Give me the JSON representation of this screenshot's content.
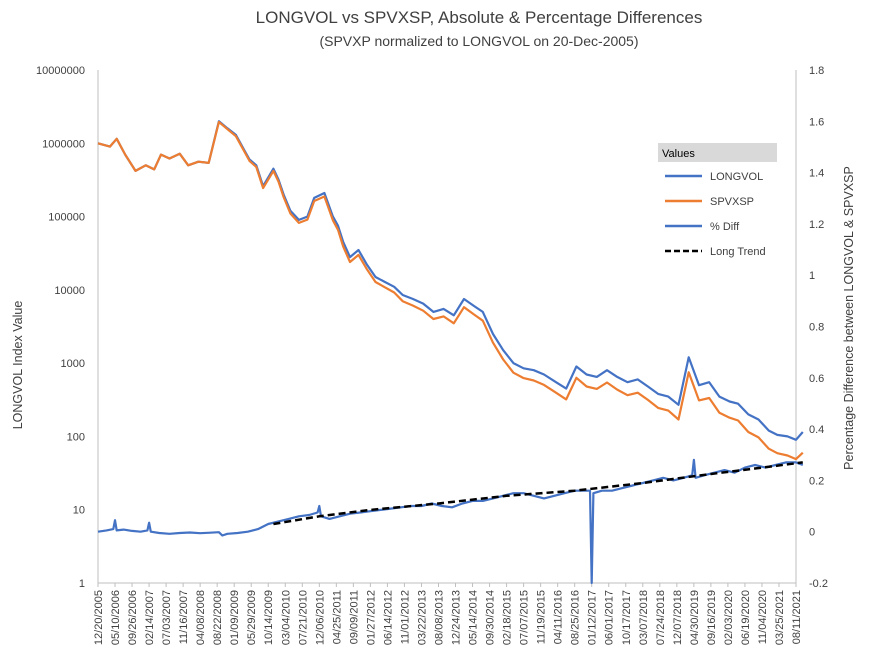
{
  "chart_data": {
    "type": "line",
    "title": "LONGVOL vs SPVXSP, Absolute & Percentage Differences",
    "subtitle": "(SPVXP normalized to LONGVOL on 20-Dec-2005)",
    "ylabel": "LONGVOL Index Value",
    "y2label": "Percentage Difference between LONGVOL & SPVXSP",
    "yscale": "log",
    "ylim": [
      1,
      10000000
    ],
    "y_ticks": [
      "1",
      "10",
      "100",
      "1000",
      "10000",
      "100000",
      "1000000",
      "10000000"
    ],
    "y2lim": [
      -0.2,
      1.8
    ],
    "y2_ticks": [
      "-0.2",
      "0",
      "0.2",
      "0.4",
      "0.6",
      "0.8",
      "1",
      "1.2",
      "1.4",
      "1.6",
      "1.8"
    ],
    "x_ticks": [
      "12/20/2005",
      "05/10/2006",
      "09/26/2006",
      "02/14/2007",
      "07/03/2007",
      "11/16/2007",
      "04/08/2008",
      "08/22/2008",
      "01/09/2009",
      "05/29/2009",
      "10/14/2009",
      "03/04/2010",
      "07/21/2010",
      "12/06/2010",
      "04/25/2011",
      "09/09/2011",
      "01/27/2012",
      "06/14/2012",
      "11/01/2012",
      "03/22/2013",
      "08/08/2013",
      "12/24/2013",
      "05/14/2014",
      "09/30/2014",
      "02/18/2015",
      "07/07/2015",
      "11/19/2015",
      "04/11/2016",
      "08/25/2016",
      "01/12/2017",
      "06/01/2017",
      "10/17/2017",
      "03/07/2018",
      "07/24/2018",
      "12/07/2018",
      "04/30/2019",
      "09/16/2019",
      "02/03/2020",
      "06/19/2020",
      "11/04/2020",
      "03/25/2021",
      "08/11/2021"
    ],
    "grid": false,
    "legend_position": "right",
    "legend_title": "Values",
    "series": [
      {
        "name": "LONGVOL",
        "axis": "left",
        "color": "#4472C4",
        "x": [
          0,
          0.7,
          1.1,
          1.6,
          2.2,
          2.8,
          3.3,
          3.7,
          4.2,
          4.8,
          5.3,
          5.9,
          6.5,
          7.1,
          7.6,
          8.1,
          8.6,
          8.9,
          9.3,
          9.7,
          10.3,
          10.6,
          10.9,
          11.3,
          11.8,
          12.3,
          12.7,
          13.3,
          13.8,
          14.1,
          14.4,
          14.8,
          15.3,
          15.8,
          16.3,
          16.8,
          17.4,
          17.9,
          18.5,
          19.1,
          19.7,
          20.3,
          20.9,
          21.5,
          22.1,
          22.6,
          23.2,
          23.8,
          24.4,
          25.0,
          25.6,
          26.2,
          26.9,
          27.5,
          28.1,
          28.7,
          29.3,
          29.9,
          30.5,
          31.1,
          31.7,
          32.3,
          32.9,
          33.5,
          34.1,
          34.7,
          35.3,
          35.9,
          36.5,
          37.1,
          37.6,
          38.2,
          38.8,
          39.4,
          39.9,
          40.5,
          41.0,
          41.4
        ],
        "y": [
          1000000,
          900000,
          1150000,
          700000,
          420000,
          500000,
          440000,
          700000,
          620000,
          720000,
          500000,
          560000,
          540000,
          2000000,
          1600000,
          1300000,
          800000,
          600000,
          500000,
          260000,
          450000,
          320000,
          200000,
          120000,
          90000,
          100000,
          180000,
          210000,
          100000,
          75000,
          45000,
          28000,
          35000,
          22000,
          15000,
          13000,
          11000,
          8500,
          7500,
          6500,
          5000,
          5500,
          4500,
          7500,
          6000,
          5000,
          2500,
          1500,
          1000,
          850,
          800,
          700,
          550,
          450,
          900,
          700,
          650,
          800,
          650,
          550,
          600,
          480,
          380,
          350,
          270,
          1200,
          500,
          550,
          350,
          300,
          280,
          200,
          170,
          120,
          105,
          100,
          90,
          115
        ]
      },
      {
        "name": "SPVXSP",
        "axis": "left",
        "color": "#ED7D31",
        "x": [
          0,
          0.7,
          1.1,
          1.6,
          2.2,
          2.8,
          3.3,
          3.7,
          4.2,
          4.8,
          5.3,
          5.9,
          6.5,
          7.1,
          7.6,
          8.1,
          8.6,
          8.9,
          9.3,
          9.7,
          10.3,
          10.6,
          10.9,
          11.3,
          11.8,
          12.3,
          12.7,
          13.3,
          13.8,
          14.1,
          14.4,
          14.8,
          15.3,
          15.8,
          16.3,
          16.8,
          17.4,
          17.9,
          18.5,
          19.1,
          19.7,
          20.3,
          20.9,
          21.5,
          22.1,
          22.6,
          23.2,
          23.8,
          24.4,
          25.0,
          25.6,
          26.2,
          26.9,
          27.5,
          28.1,
          28.7,
          29.3,
          29.9,
          30.5,
          31.1,
          31.7,
          32.3,
          32.9,
          33.5,
          34.1,
          34.7,
          35.3,
          35.9,
          36.5,
          37.1,
          37.6,
          38.2,
          38.8,
          39.4,
          39.9,
          40.5,
          41.0,
          41.4
        ],
        "y": [
          1000000,
          900000,
          1150000,
          700000,
          420000,
          500000,
          440000,
          700000,
          620000,
          720000,
          500000,
          560000,
          540000,
          1950000,
          1560000,
          1250000,
          770000,
          575000,
          475000,
          245000,
          420000,
          300000,
          185000,
          110000,
          82000,
          91000,
          163000,
          188000,
          89000,
          66000,
          39000,
          24000,
          30000,
          19000,
          12800,
          11000,
          9200,
          7000,
          6100,
          5200,
          4000,
          4350,
          3500,
          5800,
          4600,
          3800,
          1900,
          1120,
          740,
          625,
          580,
          505,
          395,
          320,
          630,
          480,
          445,
          545,
          435,
          365,
          395,
          315,
          245,
          225,
          170,
          750,
          310,
          335,
          210,
          180,
          165,
          115,
          97,
          68,
          59,
          55,
          49,
          60
        ]
      },
      {
        "name": "% Diff",
        "axis": "right",
        "color": "#4472C4",
        "x": [
          0,
          0.5,
          0.9,
          1.0,
          1.1,
          1.5,
          2.0,
          2.5,
          2.9,
          3.0,
          3.1,
          3.6,
          4.2,
          4.8,
          5.4,
          6.0,
          6.6,
          7.1,
          7.3,
          7.6,
          8.2,
          8.8,
          9.4,
          10.0,
          10.6,
          11.2,
          11.8,
          12.4,
          12.9,
          13.0,
          13.1,
          13.6,
          14.2,
          14.8,
          15.4,
          16.0,
          16.6,
          17.2,
          17.8,
          18.4,
          19.0,
          19.6,
          20.2,
          20.8,
          21.4,
          22.0,
          22.6,
          23.2,
          23.8,
          24.4,
          25.0,
          25.6,
          26.2,
          26.8,
          27.4,
          28.0,
          28.9,
          29.0,
          29.1,
          29.6,
          30.2,
          30.8,
          31.4,
          32.0,
          32.6,
          33.2,
          33.8,
          34.4,
          34.9,
          35.0,
          35.1,
          35.6,
          36.2,
          36.8,
          37.4,
          38.0,
          38.6,
          39.2,
          39.8,
          40.4,
          41.0,
          41.4
        ],
        "y": [
          0.0,
          0.005,
          0.01,
          0.045,
          0.005,
          0.008,
          0.003,
          0.0,
          0.005,
          0.035,
          0.0,
          -0.005,
          -0.008,
          -0.005,
          -0.003,
          -0.006,
          -0.004,
          -0.002,
          -0.015,
          -0.008,
          -0.005,
          0.0,
          0.01,
          0.03,
          0.04,
          0.05,
          0.06,
          0.065,
          0.075,
          0.1,
          0.06,
          0.05,
          0.06,
          0.07,
          0.075,
          0.08,
          0.085,
          0.09,
          0.095,
          0.1,
          0.1,
          0.11,
          0.1,
          0.095,
          0.11,
          0.12,
          0.12,
          0.13,
          0.14,
          0.15,
          0.15,
          0.14,
          0.13,
          0.14,
          0.15,
          0.16,
          0.16,
          -0.2,
          0.15,
          0.16,
          0.16,
          0.17,
          0.18,
          0.19,
          0.2,
          0.21,
          0.2,
          0.21,
          0.22,
          0.28,
          0.21,
          0.22,
          0.23,
          0.24,
          0.23,
          0.25,
          0.26,
          0.25,
          0.26,
          0.27,
          0.27,
          0.26
        ]
      },
      {
        "name": "Long Trend",
        "axis": "right",
        "color": "#000000",
        "style": "dashed",
        "x": [
          10.3,
          13.0,
          16.0,
          20.0,
          24.0,
          28.0,
          32.0,
          36.0,
          39.0,
          41.4
        ],
        "y": [
          0.03,
          0.06,
          0.085,
          0.11,
          0.14,
          0.16,
          0.19,
          0.225,
          0.25,
          0.27
        ]
      }
    ]
  }
}
